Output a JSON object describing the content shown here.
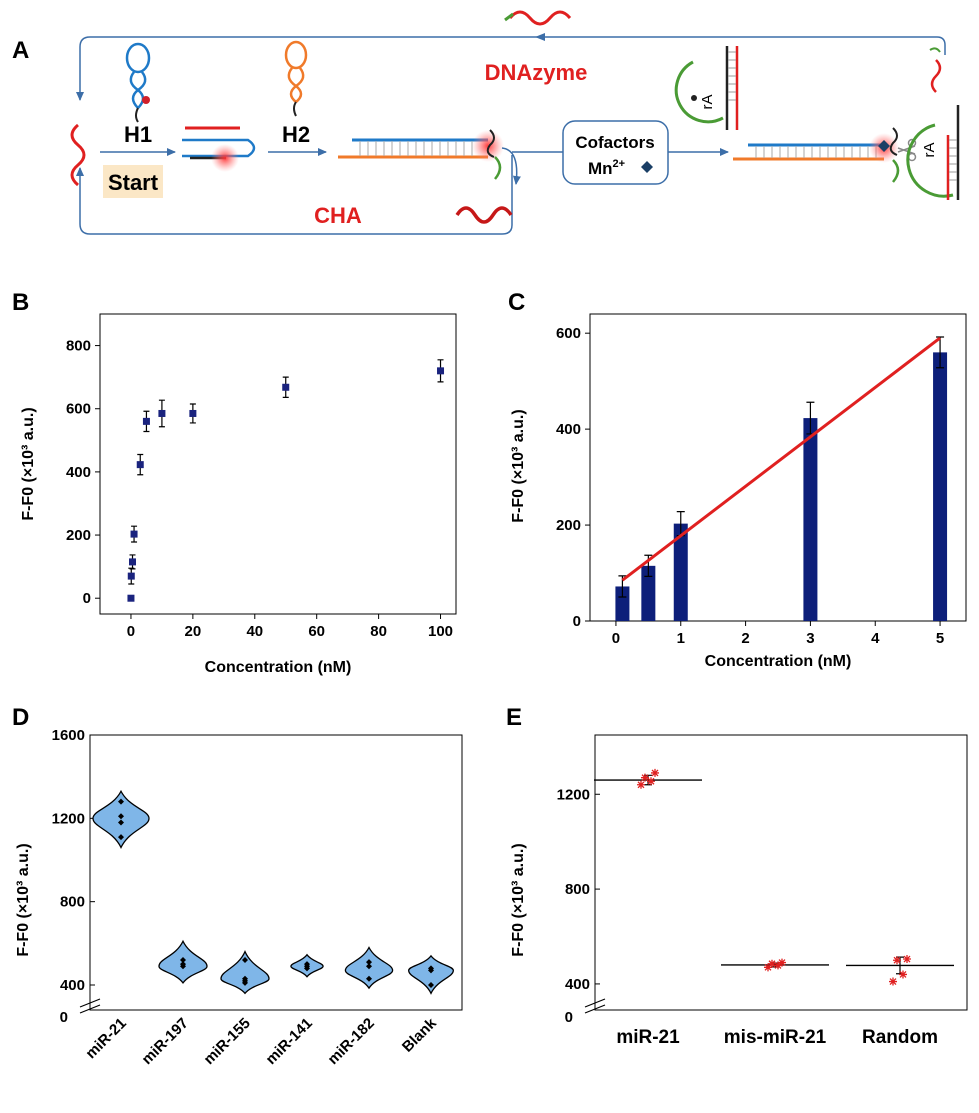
{
  "panel_labels": [
    "A",
    "B",
    "C",
    "D",
    "E"
  ],
  "schematic": {
    "h1": "H1",
    "h2": "H2",
    "start": "Start",
    "dnazyme": "DNAzyme",
    "cha": "CHA",
    "cofactors": "Cofactors",
    "mn": "Mn",
    "mn_sup": "2+",
    "ra": "rA",
    "colors": {
      "red": "#e02020",
      "blue": "#1f7ac8",
      "orange": "#f07a2a",
      "green": "#4a9b35",
      "arrow": "#3c6ea8"
    }
  },
  "chart_data": [
    {
      "id": "B",
      "type": "scatter",
      "xlabel": "Concentration (nM)",
      "ylabel": "F-F0 (×10³ a.u.)",
      "xlim": [
        -10,
        105
      ],
      "ylim": [
        -50,
        900
      ],
      "xticks": [
        0,
        20,
        40,
        60,
        80,
        100
      ],
      "yticks": [
        0,
        200,
        400,
        600,
        800
      ],
      "color": "#1a237e",
      "points": [
        {
          "x": 0,
          "y": 0,
          "err": 0
        },
        {
          "x": 0.1,
          "y": 70,
          "err": 25
        },
        {
          "x": 0.5,
          "y": 115,
          "err": 22
        },
        {
          "x": 1,
          "y": 203,
          "err": 25
        },
        {
          "x": 3,
          "y": 423,
          "err": 32
        },
        {
          "x": 5,
          "y": 560,
          "err": 32
        },
        {
          "x": 10,
          "y": 585,
          "err": 42
        },
        {
          "x": 20,
          "y": 585,
          "err": 30
        },
        {
          "x": 50,
          "y": 668,
          "err": 32
        },
        {
          "x": 100,
          "y": 720,
          "err": 35
        }
      ]
    },
    {
      "id": "C",
      "type": "bar",
      "xlabel": "Concentration (nM)",
      "ylabel": "F-F0 (×10³ a.u.)",
      "xlim": [
        -0.4,
        5.4
      ],
      "ylim": [
        0,
        640
      ],
      "xticks": [
        0,
        1,
        2,
        3,
        4,
        5
      ],
      "yticks": [
        0,
        200,
        400,
        600
      ],
      "bar_color": "#0d1f7a",
      "fit_color": "#e02020",
      "bars": [
        {
          "x": 0.1,
          "y": 72,
          "err": 22
        },
        {
          "x": 0.5,
          "y": 115,
          "err": 22
        },
        {
          "x": 1,
          "y": 203,
          "err": 25
        },
        {
          "x": 3,
          "y": 423,
          "err": 33
        },
        {
          "x": 5,
          "y": 560,
          "err": 32
        }
      ],
      "fit": {
        "x": [
          0.1,
          5
        ],
        "y": [
          85,
          590
        ]
      }
    },
    {
      "id": "D",
      "type": "violin",
      "ylabel": "F-F0 (×10³ a.u.)",
      "ylim": [
        280,
        1600
      ],
      "yticks": [
        400,
        800,
        1200,
        1600
      ],
      "extra_tick": "0",
      "fill": "#7fb6e8",
      "categories": [
        "miR-21",
        "miR-197",
        "miR-155",
        "miR-141",
        "miR-182",
        "Blank"
      ],
      "groups": [
        {
          "center": 1200,
          "min": 1100,
          "max": 1290,
          "points": [
            1110,
            1180,
            1210,
            1280
          ]
        },
        {
          "center": 490,
          "min": 450,
          "max": 570,
          "points": [
            490,
            500,
            520
          ]
        },
        {
          "center": 430,
          "min": 400,
          "max": 520,
          "points": [
            410,
            420,
            430,
            520
          ]
        },
        {
          "center": 490,
          "min": 480,
          "max": 505,
          "points": [
            480,
            490,
            500
          ]
        },
        {
          "center": 470,
          "min": 425,
          "max": 540,
          "points": [
            430,
            490,
            510
          ]
        },
        {
          "center": 470,
          "min": 400,
          "max": 500,
          "points": [
            400,
            470,
            480
          ]
        }
      ]
    },
    {
      "id": "E",
      "type": "scatter",
      "ylabel": "F-F0 (×10³ a.u.)",
      "ylim": [
        290,
        1450
      ],
      "yticks": [
        400,
        800,
        1200
      ],
      "extra_tick": "0",
      "point_color": "#e02020",
      "categories": [
        "miR-21",
        "mis-miR-21",
        "Random"
      ],
      "groups": [
        {
          "mean": 1260,
          "err": 20,
          "points": [
            1240,
            1255,
            1270,
            1290
          ]
        },
        {
          "mean": 480,
          "err": 8,
          "points": [
            470,
            478,
            485,
            490
          ]
        },
        {
          "mean": 478,
          "err": 35,
          "points": [
            410,
            440,
            500,
            505
          ]
        }
      ]
    }
  ]
}
